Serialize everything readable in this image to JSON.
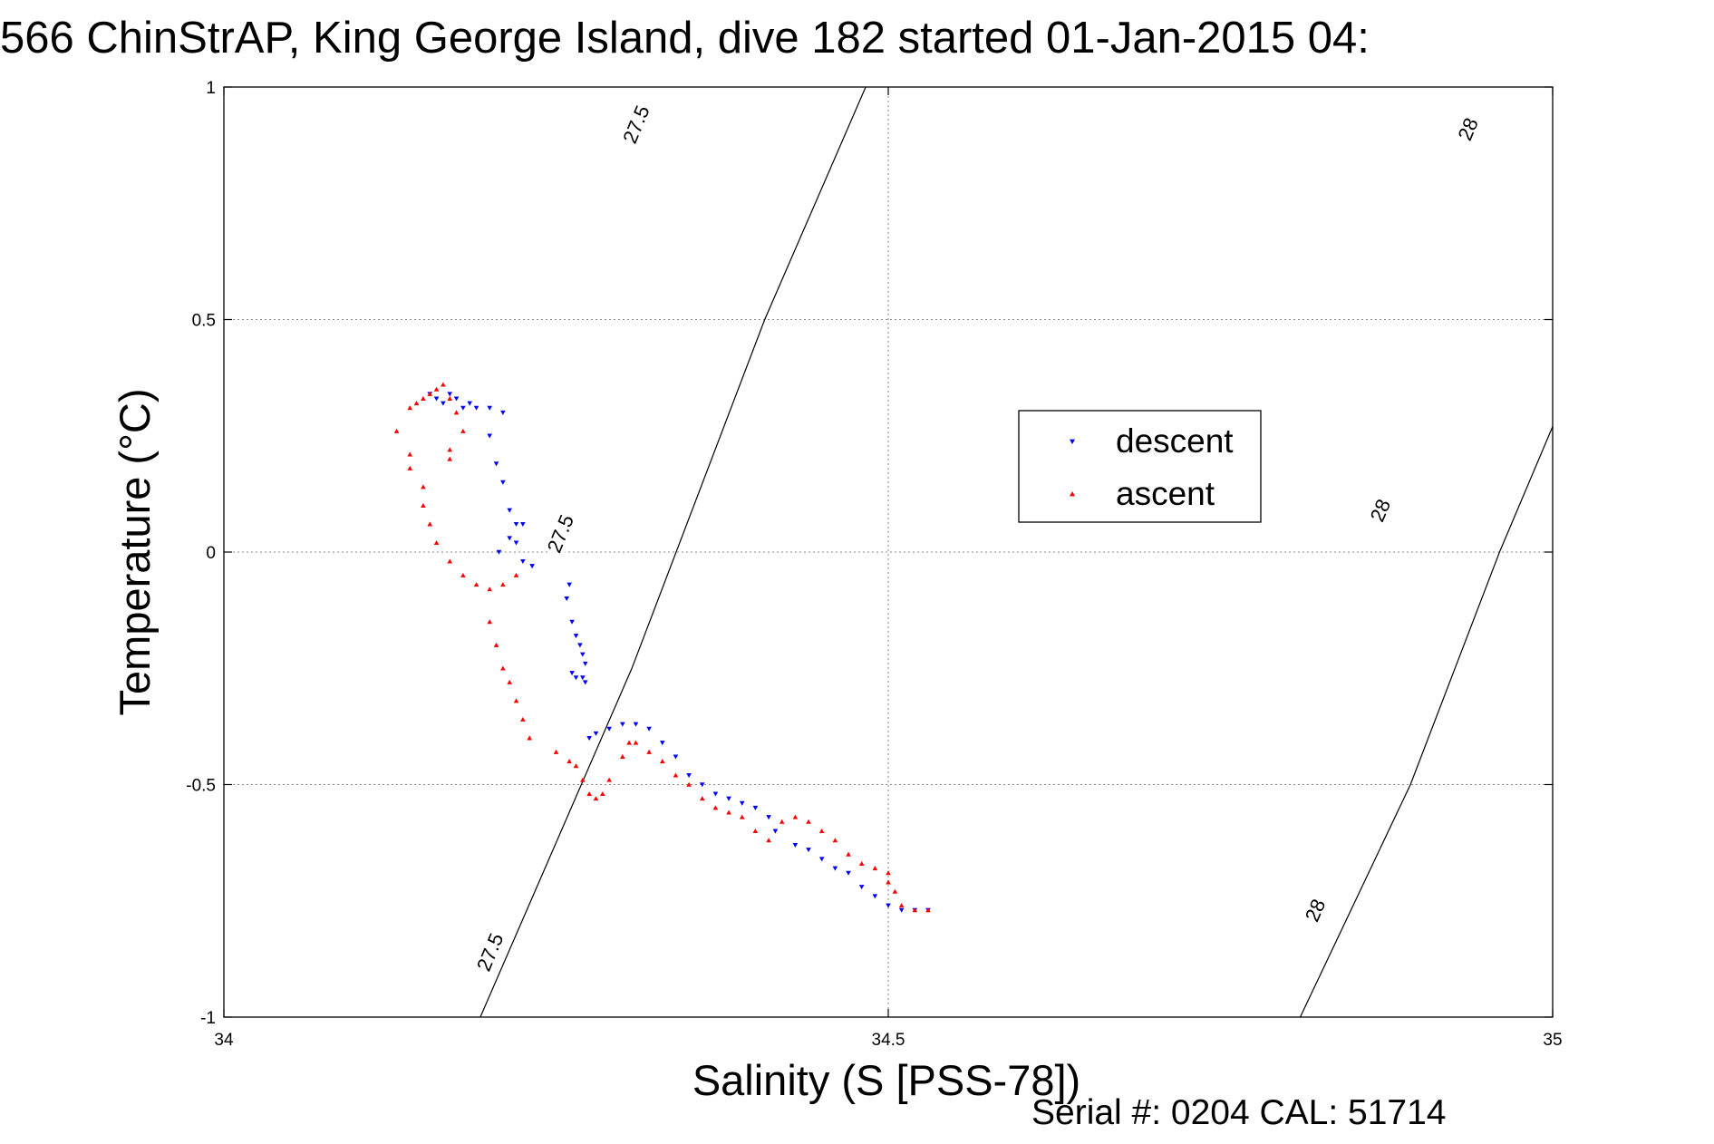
{
  "chart_data": {
    "type": "scatter",
    "title": "566 ChinStrAP, King George Island, dive 182 started 01-Jan-2015 04:",
    "xlabel": "Salinity (S [PSS-78])",
    "ylabel": "Temperature (°C)",
    "footer": "Serial #: 0204  CAL: 51714",
    "xlim": [
      34,
      35
    ],
    "ylim": [
      -1,
      1
    ],
    "x_ticks": [
      34,
      34.5,
      35
    ],
    "x_tick_labels": [
      "34",
      "34.5",
      "35"
    ],
    "y_ticks": [
      1,
      0.5,
      0,
      -0.5,
      -1
    ],
    "y_tick_labels": [
      "1",
      "0.5",
      "0",
      "-0.5",
      "-1"
    ],
    "grid": true,
    "legend_position": "upper-right",
    "contours": [
      {
        "label": "27.5",
        "points": [
          [
            34.193,
            -1.0
          ],
          [
            34.307,
            -0.25
          ],
          [
            34.407,
            0.5
          ],
          [
            34.483,
            1.0
          ]
        ],
        "label_positions": [
          [
            34.2,
            -0.86
          ],
          [
            34.253,
            0.04
          ],
          [
            34.31,
            0.92
          ]
        ]
      },
      {
        "label": "28",
        "points": [
          [
            34.81,
            -1.0
          ],
          [
            34.893,
            -0.5
          ],
          [
            34.96,
            0.0
          ],
          [
            35.0,
            0.27
          ]
        ],
        "label_positions": [
          [
            34.821,
            -0.77
          ],
          [
            34.87,
            0.09
          ],
          [
            34.936,
            0.91
          ]
        ]
      }
    ],
    "series": [
      {
        "name": "descent",
        "color": "#0000ff",
        "marker": "triangle-down",
        "x": [
          34.155,
          34.16,
          34.165,
          34.17,
          34.175,
          34.18,
          34.185,
          34.19,
          34.2,
          34.21,
          34.2,
          34.205,
          34.21,
          34.215,
          34.22,
          34.225,
          34.215,
          34.22,
          34.207,
          34.225,
          34.232,
          34.26,
          34.258,
          34.262,
          34.265,
          34.268,
          34.27,
          34.272,
          34.262,
          34.265,
          34.27,
          34.272,
          34.275,
          34.28,
          34.29,
          34.3,
          34.31,
          34.32,
          34.33,
          34.34,
          34.35,
          34.36,
          34.37,
          34.38,
          34.39,
          34.4,
          34.41,
          34.415,
          34.43,
          34.44,
          34.45,
          34.46,
          34.47,
          34.48,
          34.49,
          34.5,
          34.51,
          34.52,
          34.53
        ],
        "y": [
          0.34,
          0.33,
          0.32,
          0.34,
          0.33,
          0.31,
          0.32,
          0.31,
          0.31,
          0.3,
          0.25,
          0.19,
          0.15,
          0.09,
          0.06,
          0.06,
          0.03,
          0.02,
          0.0,
          -0.02,
          -0.03,
          -0.07,
          -0.1,
          -0.15,
          -0.18,
          -0.2,
          -0.22,
          -0.24,
          -0.26,
          -0.27,
          -0.27,
          -0.28,
          -0.4,
          -0.39,
          -0.38,
          -0.37,
          -0.37,
          -0.38,
          -0.41,
          -0.44,
          -0.48,
          -0.5,
          -0.52,
          -0.53,
          -0.54,
          -0.55,
          -0.57,
          -0.6,
          -0.63,
          -0.64,
          -0.66,
          -0.68,
          -0.69,
          -0.72,
          -0.74,
          -0.76,
          -0.77,
          -0.77,
          -0.77
        ]
      },
      {
        "name": "ascent",
        "color": "#ff0000",
        "marker": "triangle-up",
        "x": [
          34.13,
          34.14,
          34.145,
          34.15,
          34.155,
          34.16,
          34.165,
          34.17,
          34.175,
          34.18,
          34.17,
          34.17,
          34.14,
          34.14,
          34.15,
          34.15,
          34.155,
          34.16,
          34.17,
          34.18,
          34.19,
          34.2,
          34.21,
          34.22,
          34.2,
          34.205,
          34.21,
          34.215,
          34.22,
          34.225,
          34.23,
          34.25,
          34.26,
          34.265,
          34.27,
          34.275,
          34.28,
          34.285,
          34.29,
          34.3,
          34.305,
          34.31,
          34.32,
          34.33,
          34.34,
          34.35,
          34.36,
          34.37,
          34.38,
          34.39,
          34.4,
          34.41,
          34.42,
          34.43,
          34.44,
          34.45,
          34.46,
          34.47,
          34.48,
          34.49,
          34.5,
          34.505,
          34.51,
          34.52,
          34.53,
          34.5
        ],
        "y": [
          0.26,
          0.31,
          0.32,
          0.33,
          0.34,
          0.35,
          0.36,
          0.33,
          0.3,
          0.26,
          0.22,
          0.2,
          0.21,
          0.18,
          0.14,
          0.1,
          0.06,
          0.02,
          -0.02,
          -0.05,
          -0.07,
          -0.08,
          -0.07,
          -0.05,
          -0.15,
          -0.2,
          -0.25,
          -0.28,
          -0.32,
          -0.36,
          -0.4,
          -0.43,
          -0.45,
          -0.46,
          -0.49,
          -0.52,
          -0.53,
          -0.52,
          -0.49,
          -0.44,
          -0.41,
          -0.41,
          -0.43,
          -0.45,
          -0.48,
          -0.5,
          -0.53,
          -0.55,
          -0.56,
          -0.57,
          -0.6,
          -0.62,
          -0.58,
          -0.57,
          -0.58,
          -0.6,
          -0.62,
          -0.65,
          -0.67,
          -0.68,
          -0.71,
          -0.73,
          -0.76,
          -0.77,
          -0.77,
          -0.69
        ]
      }
    ]
  }
}
